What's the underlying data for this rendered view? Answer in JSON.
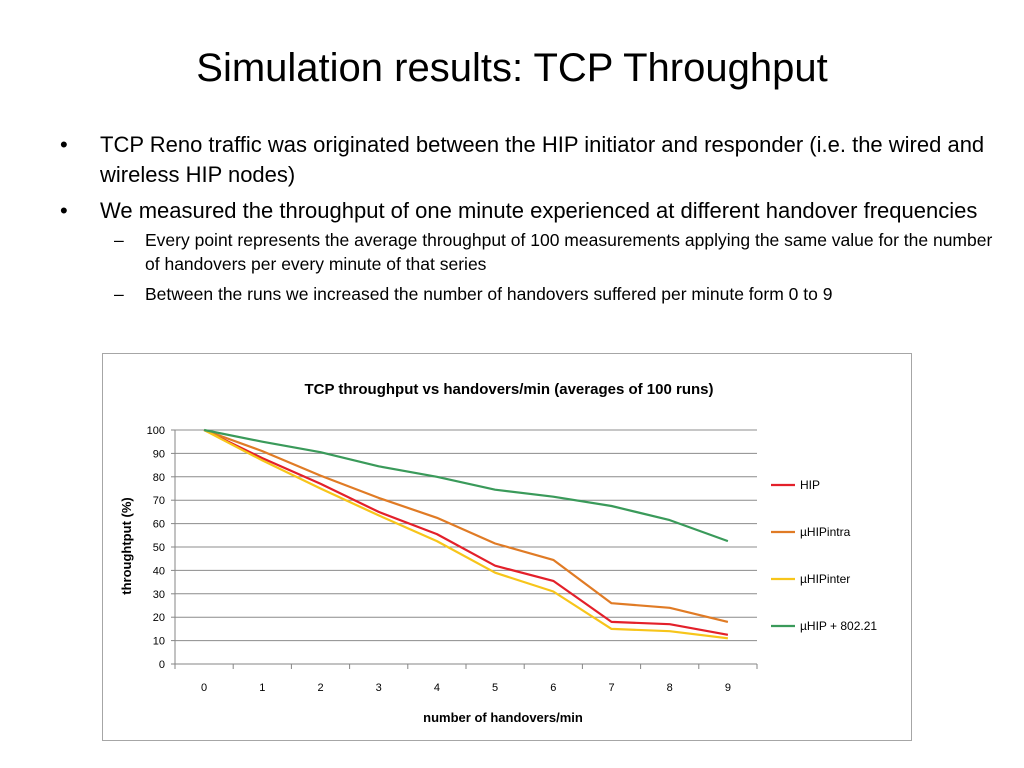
{
  "slide": {
    "title": "Simulation results: TCP Throughput",
    "bullets": [
      {
        "mark": "•",
        "text": "TCP Reno traffic was originated between the HIP initiator and responder (i.e. the wired and wireless HIP nodes)",
        "subs": []
      },
      {
        "mark": "•",
        "text": "We measured the throughput of one minute experienced at different handover frequencies",
        "subs": [
          {
            "mark": "–",
            "text": "Every point represents the average throughput of 100 measurements applying the same value for the number of handovers per every minute of that series"
          },
          {
            "mark": "–",
            "text": "Between the runs we increased the number of handovers suffered per minute form 0 to 9"
          }
        ]
      }
    ]
  },
  "chart_data": {
    "type": "line",
    "title": "TCP throughput vs handovers/min (averages of 100 runs)",
    "xlabel": "number of handovers/min",
    "ylabel": "throughtput (%)",
    "x": [
      0,
      1,
      2,
      3,
      4,
      5,
      6,
      7,
      8,
      9
    ],
    "categories": [
      "0",
      "1",
      "2",
      "3",
      "4",
      "5",
      "6",
      "7",
      "8",
      "9"
    ],
    "ylim": [
      0,
      100
    ],
    "yticks": [
      0,
      10,
      20,
      30,
      40,
      50,
      60,
      70,
      80,
      90,
      100
    ],
    "grid": true,
    "legend": "right",
    "series": [
      {
        "name": "HIP",
        "color": "#e3202a",
        "values": [
          100,
          88,
          77,
          65,
          55.5,
          42,
          35.5,
          18,
          17,
          12.5
        ]
      },
      {
        "name": "µHIPintra",
        "color": "#e07b25",
        "values": [
          100,
          91,
          80.5,
          71,
          62.5,
          51.5,
          44.5,
          26,
          24,
          18
        ]
      },
      {
        "name": "µHIPinter",
        "color": "#f7c51a",
        "values": [
          100,
          87,
          75,
          63.5,
          52.5,
          39,
          31,
          15,
          14,
          11
        ]
      },
      {
        "name": "µHIP + 802.21",
        "color": "#3a9a5a",
        "values": [
          100,
          95,
          90.5,
          84.5,
          80,
          74.5,
          71.5,
          67.5,
          61.5,
          52.5
        ]
      }
    ]
  }
}
